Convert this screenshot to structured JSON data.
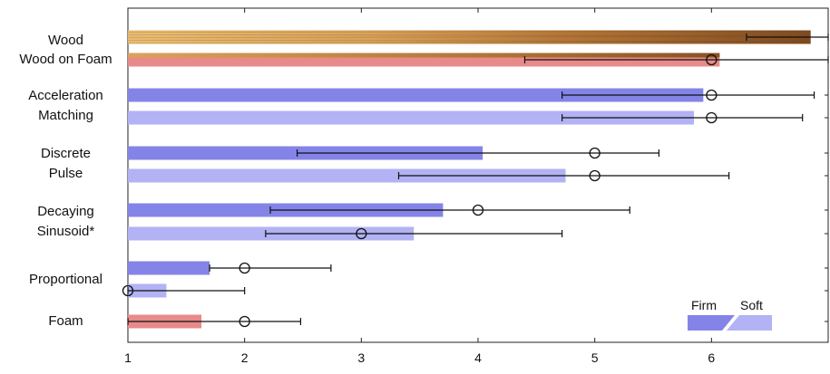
{
  "chart_data": {
    "type": "bar",
    "orientation": "horizontal",
    "xlim": [
      1,
      7
    ],
    "x_ticks": [
      "1",
      "2",
      "3",
      "4",
      "5",
      "6"
    ],
    "grid": false,
    "legend_placement": "bottom-right",
    "legend": {
      "firm_label": "Firm",
      "soft_label": "Soft"
    },
    "colors": {
      "firm": "#8484e8",
      "soft": "#b2b2f4",
      "foam": "#e88a8a",
      "wood_light": "#e6b46a",
      "wood_dark": "#8a5222",
      "errorbar": "#111111"
    },
    "category_labels": [
      {
        "id": "wood",
        "lines": [
          "Wood"
        ]
      },
      {
        "id": "wood-on-foam",
        "lines": [
          "Wood on Foam"
        ]
      },
      {
        "id": "acceleration-matching",
        "lines": [
          "Acceleration",
          "Matching"
        ]
      },
      {
        "id": "discrete-pulse",
        "lines": [
          "Discrete",
          "Pulse"
        ]
      },
      {
        "id": "decaying-sinusoid",
        "lines": [
          "Decaying",
          "Sinusoid*"
        ]
      },
      {
        "id": "proportional",
        "lines": [
          "Proportional"
        ]
      },
      {
        "id": "foam",
        "lines": [
          "Foam"
        ]
      }
    ],
    "bars": [
      {
        "id": "wood",
        "style": "wood",
        "mean": 6.85,
        "median": null,
        "err_low": 6.3,
        "err_high": 7.0
      },
      {
        "id": "wood-on-foam",
        "style": "wood-on-foam",
        "mean": 6.07,
        "median": 6,
        "err_low": 4.4,
        "err_high": 7.0
      },
      {
        "id": "acceleration-matching-firm",
        "style": "firm",
        "mean": 5.93,
        "median": 6,
        "err_low": 4.72,
        "err_high": 6.88
      },
      {
        "id": "acceleration-matching-soft",
        "style": "soft",
        "mean": 5.85,
        "median": 6,
        "err_low": 4.72,
        "err_high": 6.78
      },
      {
        "id": "discrete-pulse-firm",
        "style": "firm",
        "mean": 4.04,
        "median": 5,
        "err_low": 2.45,
        "err_high": 5.55
      },
      {
        "id": "discrete-pulse-soft",
        "style": "soft",
        "mean": 4.75,
        "median": 5,
        "err_low": 3.32,
        "err_high": 6.15
      },
      {
        "id": "decaying-sinusoid-firm",
        "style": "firm",
        "mean": 3.7,
        "median": 4,
        "err_low": 2.22,
        "err_high": 5.3
      },
      {
        "id": "decaying-sinusoid-soft",
        "style": "soft",
        "mean": 3.45,
        "median": 3,
        "err_low": 2.18,
        "err_high": 4.72
      },
      {
        "id": "proportional-firm",
        "style": "firm",
        "mean": 1.7,
        "median": 2,
        "err_low": 1.7,
        "err_high": 2.74
      },
      {
        "id": "proportional-soft",
        "style": "soft",
        "mean": 1.33,
        "median": 1,
        "err_low": 1.0,
        "err_high": 2.0
      },
      {
        "id": "foam",
        "style": "foam",
        "mean": 1.63,
        "median": 2,
        "err_low": 1.0,
        "err_high": 2.48
      }
    ]
  }
}
